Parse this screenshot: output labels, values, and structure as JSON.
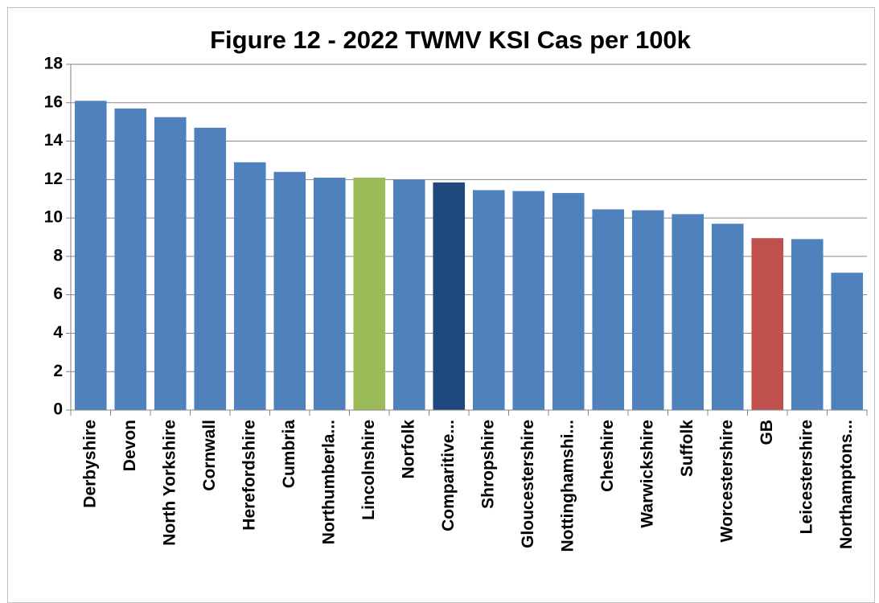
{
  "chart_data": {
    "type": "bar",
    "title": "Figure 12 - 2022 TWMV KSI Cas per 100k",
    "categories": [
      "Derbyshire",
      "Devon",
      "North Yorkshire",
      "Cornwall",
      "Herefordshire",
      "Cumbria",
      "Northumberla...",
      "Lincolnshire",
      "Norfolk",
      "Comparitive...",
      "Shropshire",
      "Gloucestershire",
      "Nottinghamshi...",
      "Cheshire",
      "Warwickshire",
      "Suffolk",
      "Worcestershire",
      "GB",
      "Leicestershire",
      "Northamptons..."
    ],
    "values": [
      16.1,
      15.7,
      15.25,
      14.7,
      12.9,
      12.4,
      12.1,
      12.1,
      12.0,
      11.85,
      11.45,
      11.4,
      11.3,
      10.45,
      10.4,
      10.2,
      9.7,
      8.95,
      8.9,
      7.15
    ],
    "colors": [
      "#4f81bd",
      "#4f81bd",
      "#4f81bd",
      "#4f81bd",
      "#4f81bd",
      "#4f81bd",
      "#4f81bd",
      "#9bbb59",
      "#4f81bd",
      "#1f497d",
      "#4f81bd",
      "#4f81bd",
      "#4f81bd",
      "#4f81bd",
      "#4f81bd",
      "#4f81bd",
      "#4f81bd",
      "#c0504d",
      "#4f81bd",
      "#4f81bd"
    ],
    "ylim": [
      0,
      18
    ],
    "yticks": [
      0,
      2,
      4,
      6,
      8,
      10,
      12,
      14,
      16,
      18
    ],
    "grid": true
  }
}
